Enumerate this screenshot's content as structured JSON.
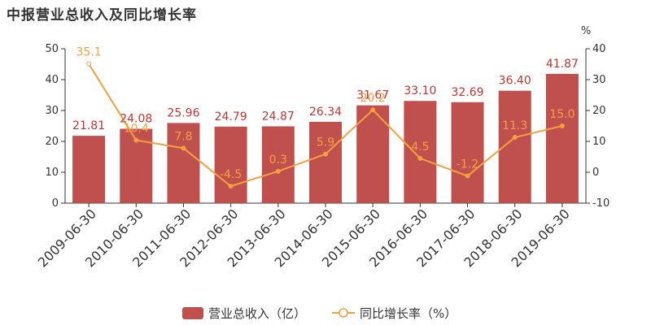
{
  "title": "中报营业总收入及同比增长率",
  "chart_data": {
    "type": "bar",
    "title": "中报营业总收入及同比增长率",
    "categories": [
      "2009-06-30",
      "2010-06-30",
      "2011-06-30",
      "2012-06-30",
      "2013-06-30",
      "2014-06-30",
      "2015-06-30",
      "2016-06-30",
      "2017-06-30",
      "2018-06-30",
      "2019-06-30"
    ],
    "series": [
      {
        "name": "营业总收入（亿）",
        "type": "bar",
        "axis": "left",
        "values": [
          21.81,
          24.08,
          25.96,
          24.79,
          24.87,
          26.34,
          31.67,
          33.1,
          32.69,
          36.4,
          41.87
        ],
        "labels": [
          "21.81",
          "24.08",
          "25.96",
          "24.79",
          "24.87",
          "26.34",
          "31.67",
          "33.10",
          "32.69",
          "36.40",
          "41.87"
        ]
      },
      {
        "name": "同比增长率（%）",
        "type": "line",
        "axis": "right",
        "values": [
          35.1,
          10.4,
          7.8,
          -4.5,
          0.3,
          5.9,
          20.2,
          4.5,
          -1.2,
          11.3,
          15.0
        ],
        "labels": [
          "35.1",
          "10.4",
          "7.8",
          "-4.5",
          "0.3",
          "5.9",
          "20.2",
          "4.5",
          "-1.2",
          "11.3",
          "15.0"
        ]
      }
    ],
    "y_left": {
      "ylim": [
        0,
        50
      ],
      "ticks": [
        "0",
        "10",
        "20",
        "30",
        "40",
        "50"
      ]
    },
    "y_right": {
      "ylim": [
        -10,
        40
      ],
      "ticks": [
        "-10",
        "0",
        "10",
        "20",
        "30",
        "40"
      ],
      "unit": "%"
    },
    "grid": false,
    "legend_position": "bottom",
    "colors": {
      "bar": "#c0504d",
      "line": "#f5a040",
      "bar_label": "#c23531"
    }
  }
}
